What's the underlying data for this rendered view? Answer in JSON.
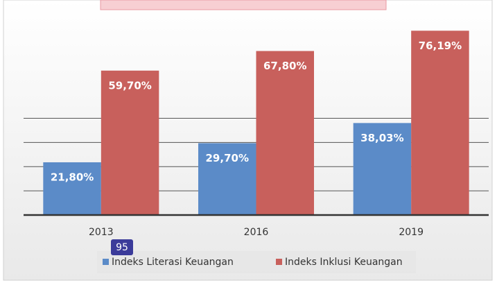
{
  "chart_data": {
    "type": "bar",
    "categories": [
      "2013",
      "2016",
      "2019"
    ],
    "series": [
      {
        "name": "Indeks Literasi Keuangan",
        "color": "#5b8bc8",
        "values": [
          21.8,
          29.7,
          38.03
        ],
        "value_labels": [
          "21,80%",
          "29,70%",
          "38,03%"
        ]
      },
      {
        "name": "Indeks Inklusi Keuangan",
        "color": "#c8605c",
        "values": [
          59.7,
          67.8,
          76.19
        ],
        "value_labels": [
          "59,70%",
          "67,80%",
          "76,19%"
        ]
      }
    ],
    "ylim": [
      0,
      80
    ],
    "grid_values": [
      10,
      20,
      30,
      40
    ],
    "grid": true,
    "legend": "bottom"
  },
  "overlay_badge": "95"
}
